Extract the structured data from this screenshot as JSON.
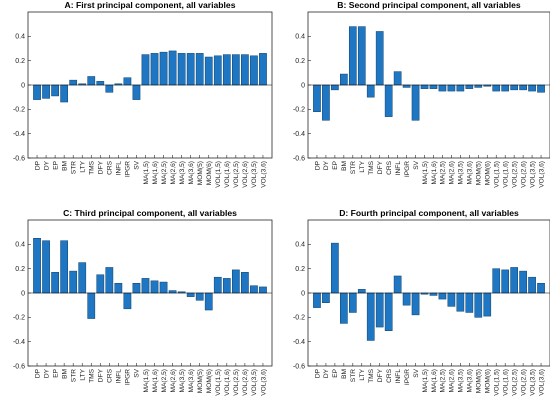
{
  "chart_data": [
    {
      "type": "bar",
      "title": "A: First principal component, all variables",
      "categories": [
        "DP",
        "DY",
        "EP",
        "BM",
        "STR",
        "LTY",
        "TMS",
        "DFY",
        "CRS",
        "INFL",
        "IPGR",
        "SV",
        "MA(1,5)",
        "MA(1,6)",
        "MA(2,5)",
        "MA(2,6)",
        "MA(3,5)",
        "MA(3,6)",
        "MOM(5)",
        "MOM(6)",
        "VOL(1,5)",
        "VOL(1,6)",
        "VOL(2,5)",
        "VOL(2,6)",
        "VOL(3,5)",
        "VOL(3,6)"
      ],
      "values": [
        -0.12,
        -0.11,
        -0.09,
        -0.14,
        0.04,
        0.01,
        0.07,
        0.03,
        -0.06,
        0.01,
        0.06,
        -0.12,
        0.25,
        0.26,
        0.27,
        0.28,
        0.26,
        0.26,
        0.26,
        0.23,
        0.24,
        0.25,
        0.25,
        0.25,
        0.24,
        0.26
      ],
      "ylim": [
        -0.6,
        0.6
      ],
      "yticks": [
        "-0.6",
        "-0.4",
        "-0.2",
        "0",
        "0.2",
        "0.4"
      ]
    },
    {
      "type": "bar",
      "title": "B: Second principal component, all variables",
      "categories": [
        "DP",
        "DY",
        "EP",
        "BM",
        "STR",
        "LTY",
        "TMS",
        "DFY",
        "CRS",
        "INFL",
        "IPGR",
        "SV",
        "MA(1,5)",
        "MA(1,6)",
        "MA(2,5)",
        "MA(2,6)",
        "MA(3,5)",
        "MA(3,6)",
        "MOM(5)",
        "MOM(6)",
        "VOL(1,5)",
        "VOL(1,6)",
        "VOL(2,5)",
        "VOL(2,6)",
        "VOL(3,5)",
        "VOL(3,6)"
      ],
      "values": [
        -0.22,
        -0.29,
        -0.04,
        0.09,
        0.48,
        0.48,
        -0.1,
        0.44,
        -0.26,
        0.11,
        -0.02,
        -0.29,
        -0.03,
        -0.03,
        -0.05,
        -0.05,
        -0.05,
        -0.03,
        -0.02,
        -0.01,
        -0.05,
        -0.05,
        -0.04,
        -0.04,
        -0.05,
        -0.06
      ],
      "ylim": [
        -0.6,
        0.6
      ],
      "yticks": [
        "-0.6",
        "-0.4",
        "-0.2",
        "0",
        "0.2",
        "0.4"
      ]
    },
    {
      "type": "bar",
      "title": "C: Third principal component, all variables",
      "categories": [
        "DP",
        "DY",
        "EP",
        "BM",
        "STR",
        "LTY",
        "TMS",
        "DFY",
        "CRS",
        "INFL",
        "IPGR",
        "SV",
        "MA(1,5)",
        "MA(1,6)",
        "MA(2,5)",
        "MA(2,6)",
        "MA(3,5)",
        "MA(3,6)",
        "MOM(5)",
        "MOM(6)",
        "VOL(1,5)",
        "VOL(1,6)",
        "VOL(2,5)",
        "VOL(2,6)",
        "VOL(3,5)",
        "VOL(3,6)"
      ],
      "values": [
        0.45,
        0.43,
        0.17,
        0.43,
        0.18,
        0.25,
        -0.21,
        0.15,
        0.21,
        0.08,
        -0.13,
        0.08,
        0.12,
        0.1,
        0.09,
        0.02,
        0.01,
        -0.03,
        -0.06,
        -0.14,
        0.13,
        0.12,
        0.19,
        0.17,
        0.06,
        0.05
      ],
      "ylim": [
        -0.6,
        0.6
      ],
      "yticks": [
        "-0.6",
        "-0.4",
        "-0.2",
        "0",
        "0.2",
        "0.4"
      ]
    },
    {
      "type": "bar",
      "title": "D: Fourth principal component, all variables",
      "categories": [
        "DP",
        "DY",
        "EP",
        "BM",
        "STR",
        "LTY",
        "TMS",
        "DFY",
        "CRS",
        "INFL",
        "IPGR",
        "SV",
        "MA(1,5)",
        "MA(1,6)",
        "MA(2,5)",
        "MA(2,6)",
        "MA(3,5)",
        "MA(3,6)",
        "MOM(5)",
        "MOM(6)",
        "VOL(1,5)",
        "VOL(1,6)",
        "VOL(2,5)",
        "VOL(2,6)",
        "VOL(3,5)",
        "VOL(3,6)"
      ],
      "values": [
        -0.12,
        -0.08,
        0.41,
        -0.25,
        -0.16,
        0.03,
        -0.39,
        -0.28,
        -0.31,
        0.14,
        -0.1,
        -0.18,
        -0.01,
        -0.02,
        -0.05,
        -0.11,
        -0.15,
        -0.16,
        -0.2,
        -0.19,
        0.2,
        0.19,
        0.21,
        0.18,
        0.13,
        0.08
      ],
      "ylim": [
        -0.6,
        0.6
      ],
      "yticks": [
        "-0.6",
        "-0.4",
        "-0.2",
        "0",
        "0.2",
        "0.4"
      ]
    }
  ],
  "colors": {
    "bar": "#1f77c4",
    "bar_edge": "#0d3f66",
    "axis": "#262626"
  }
}
